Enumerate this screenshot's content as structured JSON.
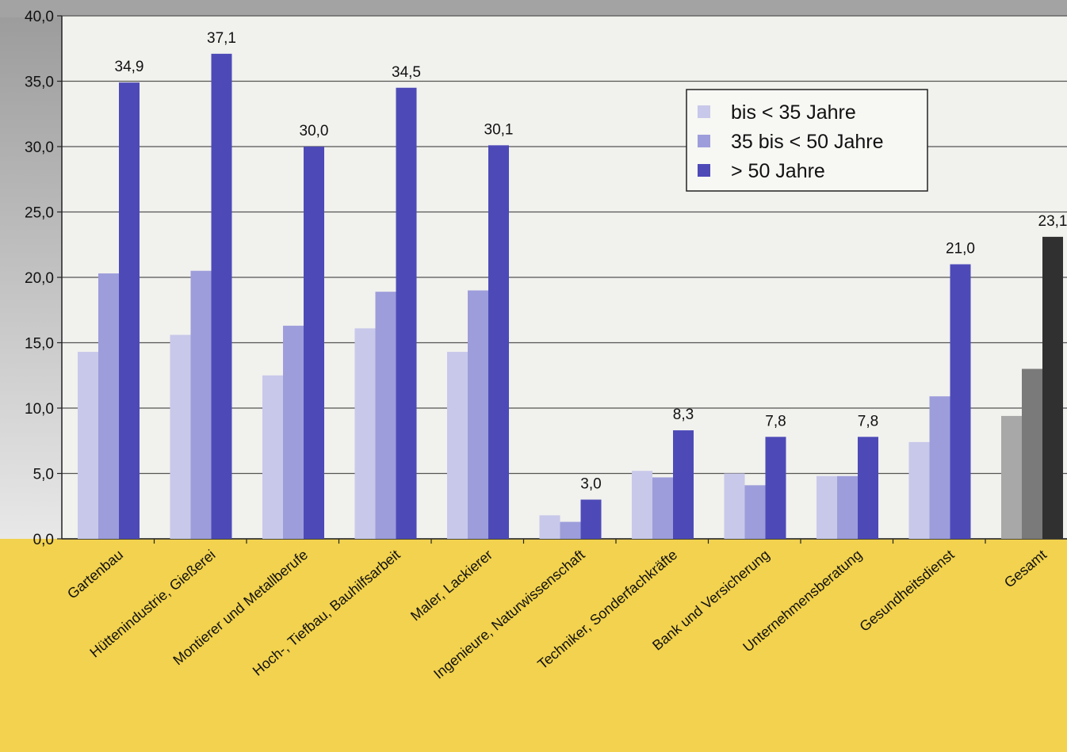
{
  "chart_data": {
    "type": "bar",
    "categories": [
      "Gartenbau",
      "Hüttenindustrie, Gießerei",
      "Montierer und Metallberufe",
      "Hoch-, Tiefbau, Bauhilfsarbeit",
      "Maler, Lackierer",
      "Ingenieure, Naturwissenschaft",
      "Techniker, Sonderfachkräfte",
      "Bank und Versicherung",
      "Unternehmensberatung",
      "Gesundheitsdienst",
      "Gesamt"
    ],
    "series": [
      {
        "name": "bis < 35 Jahre",
        "color": "#c8c8ea",
        "values": [
          14.3,
          15.6,
          12.5,
          16.1,
          14.3,
          1.8,
          5.2,
          5.0,
          4.8,
          7.4,
          9.4
        ]
      },
      {
        "name": "35 bis < 50 Jahre",
        "color": "#9d9ddb",
        "values": [
          20.3,
          20.5,
          16.3,
          18.9,
          19.0,
          1.3,
          4.7,
          4.1,
          4.8,
          10.9,
          13.0
        ]
      },
      {
        "name": "> 50 Jahre",
        "color": "#4d4ab8",
        "values": [
          34.9,
          37.1,
          30.0,
          34.5,
          30.1,
          3.0,
          8.3,
          7.8,
          7.8,
          21.0,
          23.1
        ]
      }
    ],
    "total_colors": [
      "#a8a8a8",
      "#7a7a7a",
      "#303030"
    ],
    "value_labels": [
      "34,9",
      "37,1",
      "30,0",
      "34,5",
      "30,1",
      "3,0",
      "8,3",
      "7,8",
      "7,8",
      "21,0",
      "23,1"
    ],
    "y_ticks": [
      "0,0",
      "5,0",
      "10,0",
      "15,0",
      "20,0",
      "25,0",
      "30,0",
      "35,0",
      "40,0"
    ],
    "ylim": [
      0,
      40
    ],
    "grid": true,
    "legend_position": "top-right"
  }
}
